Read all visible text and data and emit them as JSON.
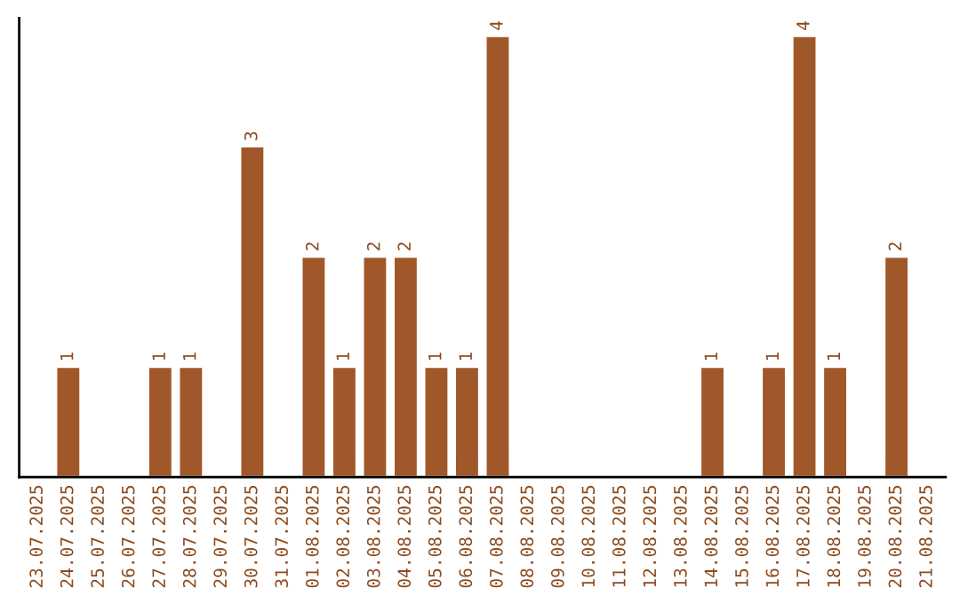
{
  "chart_data": {
    "type": "bar",
    "categories": [
      "23.07.2025",
      "24.07.2025",
      "25.07.2025",
      "26.07.2025",
      "27.07.2025",
      "28.07.2025",
      "29.07.2025",
      "30.07.2025",
      "31.07.2025",
      "01.08.2025",
      "02.08.2025",
      "03.08.2025",
      "04.08.2025",
      "05.08.2025",
      "06.08.2025",
      "07.08.2025",
      "08.08.2025",
      "09.08.2025",
      "10.08.2025",
      "11.08.2025",
      "12.08.2025",
      "13.08.2025",
      "14.08.2025",
      "15.08.2025",
      "16.08.2025",
      "17.08.2025",
      "18.08.2025",
      "19.08.2025",
      "20.08.2025",
      "21.08.2025"
    ],
    "values": [
      0,
      1,
      0,
      0,
      1,
      1,
      0,
      3,
      0,
      2,
      1,
      2,
      2,
      1,
      1,
      4,
      0,
      0,
      0,
      0,
      0,
      0,
      1,
      0,
      1,
      4,
      1,
      0,
      2,
      0
    ],
    "value_labels": [
      null,
      "1",
      null,
      null,
      "1",
      "1",
      null,
      "3",
      null,
      "2",
      "1",
      "2",
      "2",
      "1",
      "1",
      "4",
      null,
      null,
      null,
      null,
      null,
      null,
      "1",
      null,
      "1",
      "4",
      "1",
      null,
      "2",
      null
    ],
    "color": "#a0582a",
    "tick_labels": "x",
    "grid": false,
    "legend": false
  }
}
